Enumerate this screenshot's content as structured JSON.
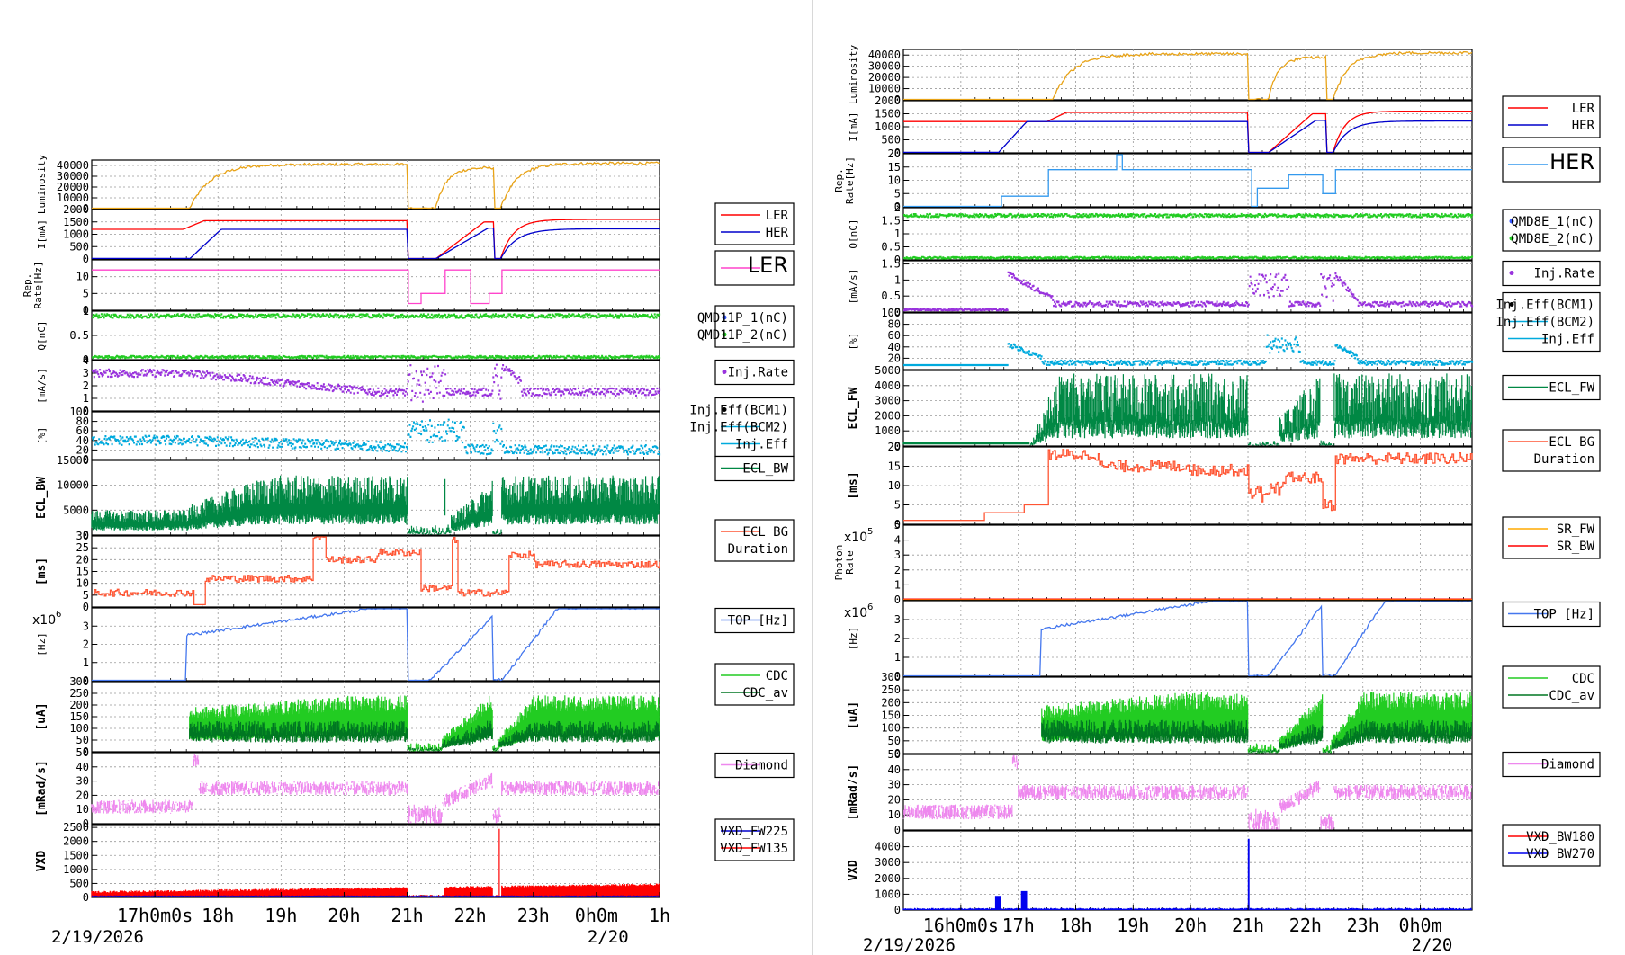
{
  "left_panel": {
    "date_label": "2/19/2026",
    "date_label2": "2/20",
    "time_ticks": [
      {
        "x": 17.0,
        "label": "17h0m0s"
      },
      {
        "x": 18.0,
        "label": "18h"
      },
      {
        "x": 19.0,
        "label": "19h"
      },
      {
        "x": 20.0,
        "label": "20h"
      },
      {
        "x": 21.0,
        "label": "21h"
      },
      {
        "x": 22.0,
        "label": "22h"
      },
      {
        "x": 23.0,
        "label": "23h"
      },
      {
        "x": 24.0,
        "label": "0h0m"
      },
      {
        "x": 25.0,
        "label": "1h"
      }
    ],
    "legend_boxes": [
      {
        "entries": [
          {
            "label": "LER",
            "color": "#ff0000"
          },
          {
            "label": "HER",
            "color": "#0000cc"
          }
        ]
      },
      {
        "entries": [
          {
            "label": "LER",
            "color": "#ff44cc"
          }
        ],
        "big": true
      },
      {
        "entries": [
          {
            "label": "QMD11P_1(nC)",
            "color": "#3355ff",
            "dot": true
          },
          {
            "label": "QMD11P_2(nC)",
            "color": "#22cc22",
            "dot": true
          }
        ]
      },
      {
        "entries": [
          {
            "label": "Inj.Rate",
            "color": "#9933dd",
            "dot": true
          }
        ]
      },
      {
        "entries": [
          {
            "label": "Inj.Eff(BCM1)",
            "color": "#000000",
            "dot": true
          },
          {
            "label": "Inj.Eff(BCM2)",
            "color": "#00aadd"
          },
          {
            "label": "Inj.Eff",
            "color": "#00aadd"
          }
        ]
      },
      {
        "entries": [
          {
            "label": "ECL_BW",
            "color": "#008844"
          }
        ]
      },
      {
        "entries": [
          {
            "label": "ECL BG",
            "color": "#ff5533"
          },
          {
            "label": "Duration",
            "color": "#ff5533",
            "noline": true
          }
        ]
      },
      {
        "entries": [
          {
            "label": "TOP [Hz]",
            "color": "#4477ee"
          }
        ]
      },
      {
        "entries": [
          {
            "label": "CDC",
            "color": "#22cc22"
          },
          {
            "label": "CDC_av",
            "color": "#007722"
          }
        ]
      },
      {
        "entries": [
          {
            "label": "Diamond",
            "color": "#ee88ee"
          }
        ]
      },
      {
        "entries": [
          {
            "label": "VXD_FW225",
            "color": "#0000cc"
          },
          {
            "label": "VXD_FW135",
            "color": "#ff0000"
          }
        ]
      }
    ]
  },
  "right_panel": {
    "date_label": "2/19/2026",
    "date_label2": "2/20",
    "time_ticks": [
      {
        "x": 16.0,
        "label": "16h0m0s"
      },
      {
        "x": 17.0,
        "label": "17h"
      },
      {
        "x": 18.0,
        "label": "18h"
      },
      {
        "x": 19.0,
        "label": "19h"
      },
      {
        "x": 20.0,
        "label": "20h"
      },
      {
        "x": 21.0,
        "label": "21h"
      },
      {
        "x": 22.0,
        "label": "22h"
      },
      {
        "x": 23.0,
        "label": "23h"
      },
      {
        "x": 24.0,
        "label": "0h0m"
      }
    ],
    "legend_boxes": [
      {
        "entries": [
          {
            "label": "LER",
            "color": "#ff0000"
          },
          {
            "label": "HER",
            "color": "#0000cc"
          }
        ]
      },
      {
        "entries": [
          {
            "label": "HER",
            "color": "#3399ee"
          }
        ],
        "big": true
      },
      {
        "entries": [
          {
            "label": "QMD8E_1(nC)",
            "color": "#3355ff",
            "dot": true
          },
          {
            "label": "QMD8E_2(nC)",
            "color": "#22cc22",
            "dot": true
          }
        ]
      },
      {
        "entries": [
          {
            "label": "Inj.Rate",
            "color": "#9933dd",
            "dot": true
          }
        ]
      },
      {
        "entries": [
          {
            "label": "Inj.Eff(BCM1)",
            "color": "#000000",
            "dot": true
          },
          {
            "label": "Inj.Eff(BCM2)",
            "color": "#00aadd"
          },
          {
            "label": "Inj.Eff",
            "color": "#00aadd"
          }
        ]
      },
      {
        "entries": [
          {
            "label": "ECL_FW",
            "color": "#008844"
          }
        ]
      },
      {
        "entries": [
          {
            "label": "ECL BG",
            "color": "#ff5533"
          },
          {
            "label": "Duration",
            "color": "#ff5533",
            "noline": true
          }
        ]
      },
      {
        "entries": [
          {
            "label": "SR_FW",
            "color": "#ffaa00"
          },
          {
            "label": "SR_BW",
            "color": "#ff0000"
          }
        ]
      },
      {
        "entries": [
          {
            "label": "TOP [Hz]",
            "color": "#4477ee"
          }
        ]
      },
      {
        "entries": [
          {
            "label": "CDC",
            "color": "#22cc22"
          },
          {
            "label": "CDC_av",
            "color": "#007722"
          }
        ]
      },
      {
        "entries": [
          {
            "label": "Diamond",
            "color": "#ee88ee"
          }
        ]
      },
      {
        "entries": [
          {
            "label": "VXD_BW180",
            "color": "#ff0000"
          },
          {
            "label": "VXD_BW270",
            "color": "#0000ee"
          }
        ]
      }
    ]
  },
  "chart_data": [
    {
      "type": "line",
      "panel": "left",
      "xlim": [
        16.0,
        25.0
      ],
      "subplots": [
        {
          "ylabel": "Luminosity",
          "ylim": [
            0,
            45000
          ],
          "yticks": [
            0,
            10000,
            20000,
            30000,
            40000
          ],
          "series": [
            {
              "color": "#e8a317",
              "kind": "lum"
            }
          ]
        },
        {
          "ylabel": "I[mA]",
          "ylim": [
            0,
            2000
          ],
          "yticks": [
            0,
            500,
            1000,
            1500,
            2000
          ],
          "series": [
            {
              "name": "LER",
              "color": "#ff0000",
              "kind": "ler"
            },
            {
              "name": "HER",
              "color": "#0000cc",
              "kind": "her"
            }
          ]
        },
        {
          "ylabel": "Rep. Rate[Hz]",
          "ylim": [
            0,
            15
          ],
          "yticks": [
            0,
            5,
            10
          ],
          "series": [
            {
              "name": "LER",
              "color": "#ff44cc",
              "kind": "rep"
            }
          ]
        },
        {
          "ylabel": "Q[nC]",
          "ylim": [
            0,
            1.0
          ],
          "yticks": [
            0,
            0.5,
            1
          ],
          "series": [
            {
              "color": "#22cc22",
              "kind": "charge"
            }
          ]
        },
        {
          "ylabel": "[mA/s]",
          "ylim": [
            0,
            4
          ],
          "yticks": [
            0,
            1,
            2,
            3,
            4
          ],
          "series": [
            {
              "name": "Inj.Rate",
              "color": "#9933dd",
              "kind": "injrate"
            }
          ]
        },
        {
          "ylabel": "[%]",
          "ylim": [
            0,
            100
          ],
          "yticks": [
            0,
            20,
            40,
            60,
            80,
            100
          ],
          "series": [
            {
              "color": "#00aadd",
              "kind": "injeff"
            }
          ]
        },
        {
          "ylabel": "ECL_BW",
          "ylim": [
            0,
            15000
          ],
          "yticks": [
            0,
            5000,
            10000,
            15000
          ],
          "series": [
            {
              "name": "ECL_BW",
              "color": "#008844",
              "kind": "ecl"
            }
          ]
        },
        {
          "ylabel": "[ms]",
          "ylim": [
            0,
            30
          ],
          "yticks": [
            0,
            5,
            10,
            15,
            20,
            25,
            30
          ],
          "series": [
            {
              "color": "#ff5533",
              "kind": "dur"
            }
          ]
        },
        {
          "ylabel": "[Hz]",
          "ylim": [
            0,
            4
          ],
          "yticks": [
            0,
            1,
            2,
            3
          ],
          "scale": "x10^6",
          "series": [
            {
              "name": "TOP [Hz]",
              "color": "#4477ee",
              "kind": "top"
            }
          ]
        },
        {
          "ylabel": "[uA]",
          "ylim": [
            0,
            300
          ],
          "yticks": [
            0,
            50,
            100,
            150,
            200,
            250,
            300
          ],
          "series": [
            {
              "name": "CDC",
              "color": "#22cc22",
              "kind": "cdc"
            },
            {
              "name": "CDC_av",
              "color": "#007722",
              "kind": "cdcav"
            }
          ]
        },
        {
          "ylabel": "[mRad/s]",
          "ylim": [
            0,
            50
          ],
          "yticks": [
            0,
            10,
            20,
            30,
            40,
            50
          ],
          "series": [
            {
              "name": "Diamond",
              "color": "#ee88ee",
              "kind": "diamond"
            }
          ]
        },
        {
          "ylabel": "VXD",
          "ylim": [
            0,
            2600
          ],
          "yticks": [
            0,
            500,
            1000,
            1500,
            2000,
            2500
          ],
          "series": [
            {
              "name": "VXD_FW135",
              "color": "#ff0000",
              "kind": "vxd"
            }
          ]
        }
      ]
    },
    {
      "type": "line",
      "panel": "right",
      "xlim": [
        15.0,
        24.9
      ],
      "subplots": [
        {
          "ylabel": "Luminosity",
          "ylim": [
            0,
            45000
          ],
          "yticks": [
            0,
            10000,
            20000,
            30000,
            40000
          ],
          "series": [
            {
              "color": "#e8a317",
              "kind": "lum"
            }
          ]
        },
        {
          "ylabel": "I[mA]",
          "ylim": [
            0,
            2000
          ],
          "yticks": [
            0,
            500,
            1000,
            1500,
            2000
          ],
          "series": [
            {
              "name": "LER",
              "color": "#ff0000",
              "kind": "ler"
            },
            {
              "name": "HER",
              "color": "#0000cc",
              "kind": "her"
            }
          ]
        },
        {
          "ylabel": "Rep. Rate[Hz]",
          "ylim": [
            0,
            20
          ],
          "yticks": [
            0,
            5,
            10,
            15,
            20
          ],
          "series": [
            {
              "name": "HER",
              "color": "#3399ee",
              "kind": "rep"
            }
          ]
        },
        {
          "ylabel": "Q[nC]",
          "ylim": [
            0,
            2.0
          ],
          "yticks": [
            0,
            0.5,
            1,
            1.5,
            2
          ],
          "series": [
            {
              "color": "#22cc22",
              "kind": "charge"
            }
          ]
        },
        {
          "ylabel": "[mA/s]",
          "ylim": [
            0,
            1.6
          ],
          "yticks": [
            0,
            0.5,
            1,
            1.5
          ],
          "series": [
            {
              "name": "Inj.Rate",
              "color": "#9933dd",
              "kind": "injrate"
            }
          ]
        },
        {
          "ylabel": "[%]",
          "ylim": [
            0,
            100
          ],
          "yticks": [
            20,
            40,
            60,
            80,
            100
          ],
          "series": [
            {
              "color": "#00aadd",
              "kind": "injeff"
            }
          ]
        },
        {
          "ylabel": "ECL_FW",
          "ylim": [
            0,
            5000
          ],
          "yticks": [
            0,
            1000,
            2000,
            3000,
            4000,
            5000
          ],
          "series": [
            {
              "name": "ECL_FW",
              "color": "#008844",
              "kind": "ecl"
            }
          ]
        },
        {
          "ylabel": "[ms]",
          "ylim": [
            0,
            20
          ],
          "yticks": [
            0,
            5,
            10,
            15,
            20
          ],
          "series": [
            {
              "color": "#ff5533",
              "kind": "dur"
            }
          ]
        },
        {
          "ylabel": "Photon Rate",
          "ylim": [
            0,
            5
          ],
          "yticks": [
            0,
            1,
            2,
            3,
            4,
            5
          ],
          "scale": "x10^5",
          "series": [
            {
              "name": "SR_FW",
              "color": "#ffaa00",
              "kind": "sr"
            }
          ]
        },
        {
          "ylabel": "[Hz]",
          "ylim": [
            0,
            4
          ],
          "yticks": [
            0,
            1,
            2,
            3
          ],
          "scale": "x10^6",
          "series": [
            {
              "name": "TOP [Hz]",
              "color": "#4477ee",
              "kind": "top"
            }
          ]
        },
        {
          "ylabel": "[uA]",
          "ylim": [
            0,
            300
          ],
          "yticks": [
            0,
            50,
            100,
            150,
            200,
            250,
            300
          ],
          "series": [
            {
              "name": "CDC",
              "color": "#22cc22",
              "kind": "cdc"
            },
            {
              "name": "CDC_av",
              "color": "#007722",
              "kind": "cdcav"
            }
          ]
        },
        {
          "ylabel": "[mRad/s]",
          "ylim": [
            0,
            50
          ],
          "yticks": [
            0,
            10,
            20,
            30,
            40,
            50
          ],
          "series": [
            {
              "name": "Diamond",
              "color": "#ee88ee",
              "kind": "diamond"
            }
          ]
        },
        {
          "ylabel": "VXD",
          "ylim": [
            0,
            5000
          ],
          "yticks": [
            0,
            1000,
            2000,
            3000,
            4000
          ],
          "series": [
            {
              "name": "VXD_BW270",
              "color": "#0000ee",
              "kind": "vxd"
            }
          ]
        }
      ]
    }
  ]
}
